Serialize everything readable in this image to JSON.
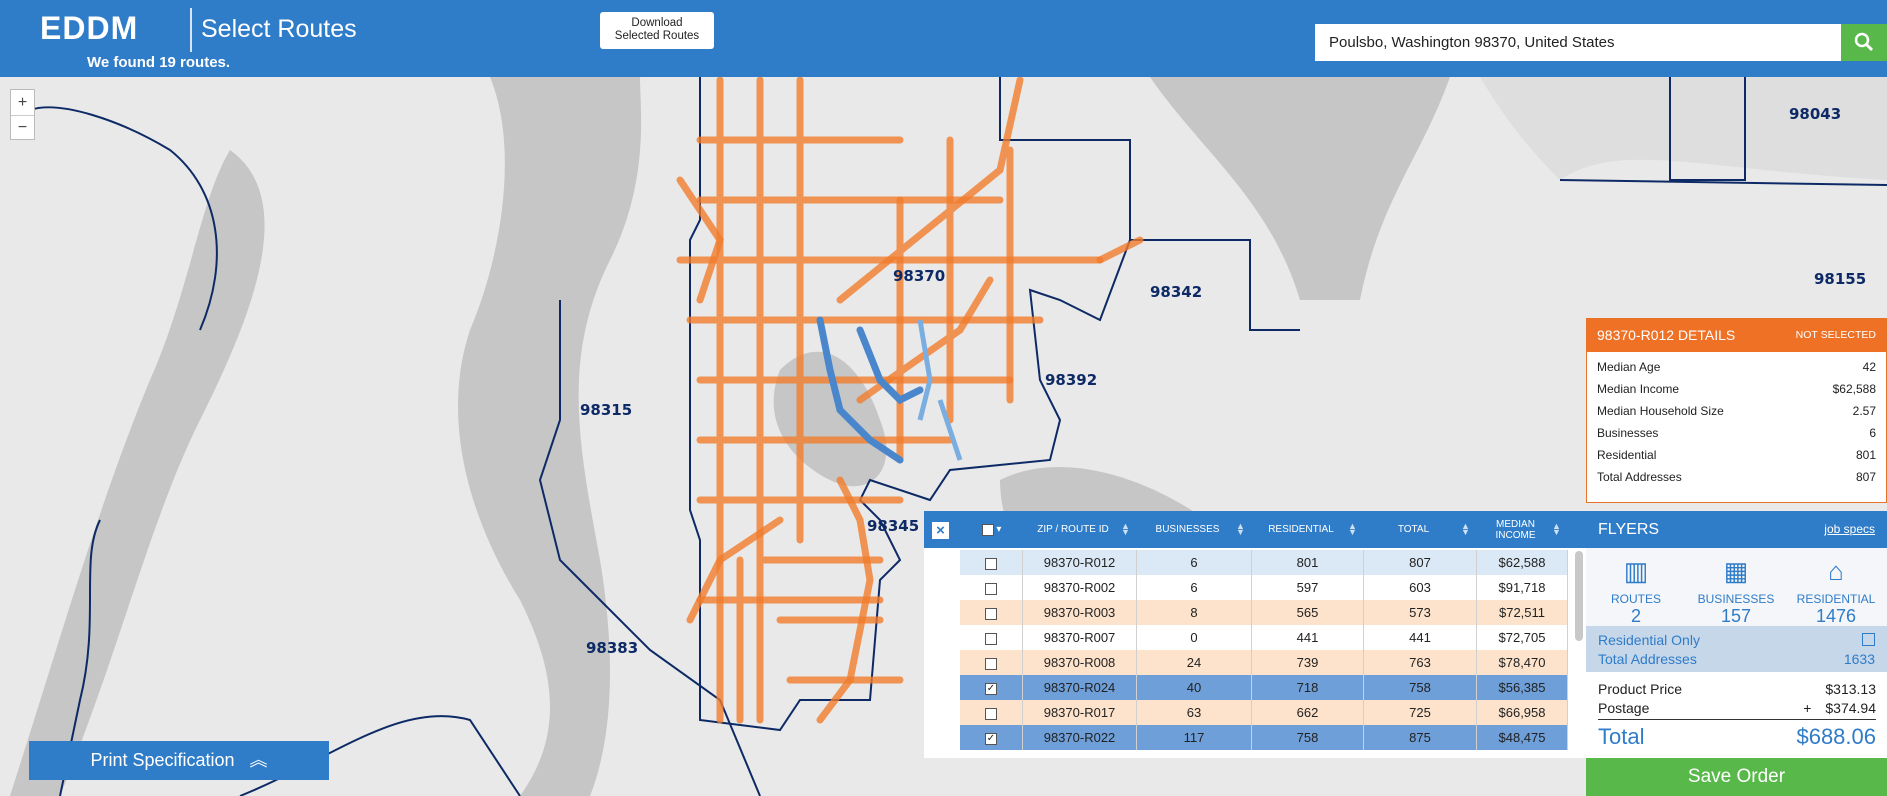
{
  "header": {
    "logo": "EDDM",
    "title": "Select Routes",
    "subtitle": "We found 19 routes.",
    "download_button": [
      "Download",
      "Selected Routes"
    ],
    "search": "Poulsbo, Washington 98370, United States"
  },
  "map": {
    "zoom_in": "+",
    "zoom_out": "−",
    "zip_labels": [
      "98370",
      "98342",
      "98392",
      "98315",
      "98345",
      "98383",
      "98043",
      "98155"
    ]
  },
  "details": {
    "title": "98370-R012 DETAILS",
    "status": "NOT SELECTED",
    "rows": [
      [
        "Median Age",
        "42"
      ],
      [
        "Median Income",
        "$62,588"
      ],
      [
        "Median Household Size",
        "2.57"
      ],
      [
        "Businesses",
        "6"
      ],
      [
        "Residential",
        "801"
      ],
      [
        "Total Addresses",
        "807"
      ]
    ]
  },
  "table": {
    "headers": [
      "ZIP / ROUTE ID",
      "BUSINESSES",
      "RESIDENTIAL",
      "TOTAL",
      "MEDIAN INCOME"
    ],
    "rows": [
      {
        "cells": [
          "98370-R012",
          "6",
          "801",
          "807",
          "$62,588"
        ],
        "selected": false
      },
      {
        "cells": [
          "98370-R002",
          "6",
          "597",
          "603",
          "$91,718"
        ],
        "selected": false
      },
      {
        "cells": [
          "98370-R003",
          "8",
          "565",
          "573",
          "$72,511"
        ],
        "selected": false
      },
      {
        "cells": [
          "98370-R007",
          "0",
          "441",
          "441",
          "$72,705"
        ],
        "selected": false
      },
      {
        "cells": [
          "98370-R008",
          "24",
          "739",
          "763",
          "$78,470"
        ],
        "selected": false
      },
      {
        "cells": [
          "98370-R024",
          "40",
          "718",
          "758",
          "$56,385"
        ],
        "selected": true
      },
      {
        "cells": [
          "98370-R017",
          "63",
          "662",
          "725",
          "$66,958"
        ],
        "selected": false
      },
      {
        "cells": [
          "98370-R022",
          "117",
          "758",
          "875",
          "$48,475"
        ],
        "selected": true
      }
    ]
  },
  "flyers": {
    "title": "FLYERS",
    "link": "job specs",
    "stats": [
      {
        "label": "ROUTES",
        "value": "2"
      },
      {
        "label": "BUSINESSES",
        "value": "157"
      },
      {
        "label": "RESIDENTIAL",
        "value": "1476"
      }
    ],
    "residential_only": "Residential Only",
    "total_addresses": [
      "Total Addresses",
      "1633"
    ],
    "product_price": [
      "Product Price",
      "$313.13"
    ],
    "postage": [
      "Postage",
      "+",
      "$374.94"
    ],
    "total": [
      "Total",
      "$688.06"
    ]
  },
  "save_button": "Save Order",
  "print_button": "Print Specification"
}
